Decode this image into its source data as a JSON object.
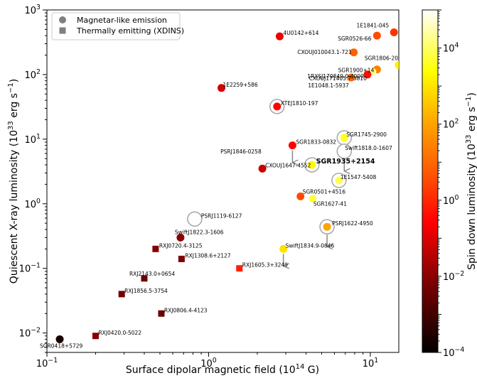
{
  "chart_data": {
    "type": "scatter",
    "xscale": "log",
    "yscale": "log",
    "xlabel": "Surface dipolar magnetic field (10",
    "xlabel_sup": "14",
    "xlabel_end": " G)",
    "ylabel": "Quiescent X-ray luminosity (10",
    "ylabel_sup": "33",
    "ylabel_end": " erg s",
    "ylabel_sup2": "−1",
    "ylabel_close": ")",
    "xlim": [
      0.1,
      15
    ],
    "ylim": [
      0.005,
      1000
    ],
    "x_ticks": [
      {
        "v": 0.1,
        "base": "10",
        "exp": "−1"
      },
      {
        "v": 1,
        "base": "10",
        "exp": "0"
      },
      {
        "v": 10,
        "base": "10",
        "exp": "1"
      }
    ],
    "y_ticks": [
      {
        "v": 0.01,
        "base": "10",
        "exp": "−2"
      },
      {
        "v": 0.1,
        "base": "10",
        "exp": "−1"
      },
      {
        "v": 1,
        "base": "10",
        "exp": "0"
      },
      {
        "v": 10,
        "base": "10",
        "exp": "1"
      },
      {
        "v": 100,
        "base": "10",
        "exp": "2"
      },
      {
        "v": 1000,
        "base": "10",
        "exp": "3"
      }
    ],
    "legend": {
      "placement": "top-left",
      "entries": [
        {
          "marker": "circle",
          "label": "Magnetar-like emission"
        },
        {
          "marker": "square",
          "label": "Thermally emitting (XDINS)"
        }
      ]
    },
    "colorbar": {
      "label": "Spin down luminosity (10",
      "label_sup": "33",
      "label_end": " erg s",
      "label_sup2": "−1",
      "label_close": ")",
      "scale": "log",
      "range": [
        0.0001,
        100000
      ],
      "ticks": [
        {
          "v": 0.0001,
          "base": "10",
          "exp": "−4"
        },
        {
          "v": 0.01,
          "base": "10",
          "exp": "−2"
        },
        {
          "v": 1,
          "base": "10",
          "exp": "0"
        },
        {
          "v": 100,
          "base": "10",
          "exp": "2"
        },
        {
          "v": 10000,
          "base": "10",
          "exp": "4"
        }
      ],
      "colormap": "hot"
    },
    "points": [
      {
        "name": "SGR0418+5729",
        "x": 0.12,
        "y": 0.008,
        "edot": 0.0002,
        "marker": "circle"
      },
      {
        "name": "RXJ0420.0-5022",
        "x": 0.2,
        "y": 0.009,
        "edot": 0.005,
        "marker": "square"
      },
      {
        "name": "RXJ1856.5-3754",
        "x": 0.29,
        "y": 0.04,
        "edot": 0.003,
        "marker": "square"
      },
      {
        "name": "RXJ2143.0+0654",
        "x": 0.4,
        "y": 0.07,
        "edot": 0.0025,
        "marker": "square"
      },
      {
        "name": "RXJ0806.4-4123",
        "x": 0.51,
        "y": 0.02,
        "edot": 0.0025,
        "marker": "square"
      },
      {
        "name": "RXJ0720.4-3125",
        "x": 0.47,
        "y": 0.2,
        "edot": 0.005,
        "marker": "square"
      },
      {
        "name": "RXJ1308.6+2127",
        "x": 0.68,
        "y": 0.14,
        "edot": 0.004,
        "marker": "square"
      },
      {
        "name": "RXJ1605.3+3249",
        "x": 1.55,
        "y": 0.1,
        "edot": 0.5,
        "marker": "square"
      },
      {
        "name": "SwiftJ1822.3-1606",
        "x": 0.67,
        "y": 0.3,
        "edot": 0.006,
        "marker": "circle"
      },
      {
        "name": "PSRJ1119-6127",
        "x": 0.82,
        "y": 0.58,
        "edot": 230000,
        "marker": "circle",
        "ring": true
      },
      {
        "name": "1E2259+586",
        "x": 1.2,
        "y": 62,
        "edot": 0.05,
        "marker": "circle"
      },
      {
        "name": "4U0142+614",
        "x": 2.75,
        "y": 390,
        "edot": 0.1,
        "marker": "circle"
      },
      {
        "name": "XTEJ1810-197",
        "x": 2.65,
        "y": 32,
        "edot": 0.2,
        "marker": "circle",
        "ring": true
      },
      {
        "name": "PSRJ1846-0258",
        "x": null,
        "y": null,
        "edot": null,
        "marker": "circle",
        "label_only": true
      },
      {
        "name": "CXOUJ1647-4552",
        "x": 2.15,
        "y": 3.5,
        "edot": 0.04,
        "marker": "circle"
      },
      {
        "name": "SGR1833-0832",
        "x": 3.3,
        "y": 8,
        "edot": 0.2,
        "marker": "circle",
        "arrow": true
      },
      {
        "name": "SGR1935+2154",
        "x": 4.35,
        "y": 4,
        "edot": 400,
        "marker": "circle",
        "ring": true,
        "bold": true
      },
      {
        "name": "SGR0501+4516",
        "x": 3.7,
        "y": 1.3,
        "edot": 2,
        "marker": "circle"
      },
      {
        "name": "SGR1627-41",
        "x": 4.4,
        "y": 1.2,
        "edot": 2000,
        "marker": "circle"
      },
      {
        "name": "SGR1745-2900",
        "x": 6.9,
        "y": 10.5,
        "edot": 1000,
        "marker": "circle",
        "ring": true
      },
      {
        "name": "Swift1818.0-1607",
        "x": 6.9,
        "y": 6.5,
        "edot": 100000,
        "marker": "circle",
        "ring": true,
        "arrow": true
      },
      {
        "name": "1E1547-5408",
        "x": 6.4,
        "y": 2.3,
        "edot": 3000,
        "marker": "circle",
        "ring": true
      },
      {
        "name": "PSRJ1622-4950",
        "x": 5.4,
        "y": 0.44,
        "edot": 30,
        "marker": "circle",
        "ring": true,
        "arrow": true
      },
      {
        "name": "SwiftJ1834.9-0846",
        "x": 2.9,
        "y": 0.2,
        "edot": 200,
        "marker": "circle",
        "arrow": true
      },
      {
        "name": "1E1841-045",
        "x": 14,
        "y": 450,
        "edot": 1,
        "marker": "circle"
      },
      {
        "name": "SGR0526-66",
        "x": 11,
        "y": 400,
        "edot": 2,
        "marker": "circle"
      },
      {
        "name": "CXOUJ010043.1-721",
        "x": 7.9,
        "y": 220,
        "edot": 4,
        "marker": "circle"
      },
      {
        "name": "SGR1806-20",
        "x": 15,
        "y": 140,
        "edot": 300,
        "marker": "circle"
      },
      {
        "name": "SGR1900+14",
        "x": 11,
        "y": 120,
        "edot": 10,
        "marker": "circle"
      },
      {
        "name": "CXOUJ171405.7-3810",
        "x": 10.3,
        "y": 110,
        "edot": 10000,
        "marker": "circle"
      },
      {
        "name": "1RXSJ170849.0-4009",
        "x": 9.6,
        "y": 100,
        "edot": 0.3,
        "marker": "circle"
      },
      {
        "name": "1E1048.1-5937",
        "x": 7.6,
        "y": 90,
        "edot": 5,
        "marker": "circle"
      }
    ]
  }
}
